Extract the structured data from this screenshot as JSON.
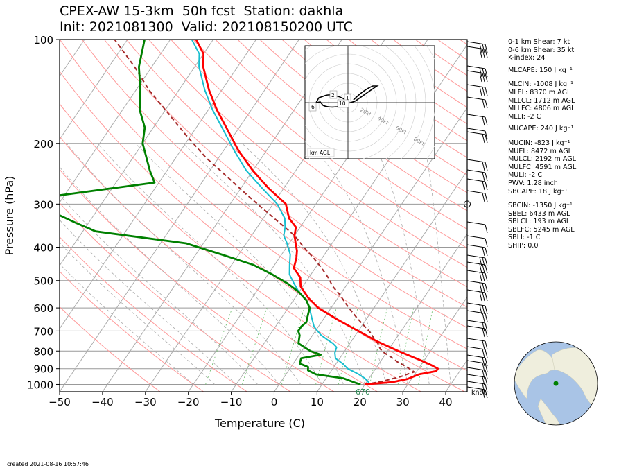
{
  "header": {
    "title_line1": "CPEX-AW 15-3km  50h fcst  Station: dakhla",
    "title_line2": "Init: 2021081300  Valid: 202108150200 UTC"
  },
  "stats": [
    "0-1 km Shear: 7 kt",
    "0-6 km Shear: 35 kt",
    "K-index: 24",
    "MLCAPE: 150 J kg⁻¹",
    "MLCIN: -1008 J kg⁻¹",
    "MLEL: 8370 m AGL",
    "MLLCL: 1712 m AGL",
    "MLLFC: 4806 m AGL",
    "MLLI: -2 C",
    "MUCAPE: 240 J kg⁻¹",
    "MUCIN: -823 J kg⁻¹",
    "MUEL: 8472 m AGL",
    "MULCL: 2192 m AGL",
    "MULFC: 4591 m AGL",
    "MULI: -2 C",
    "PWV: 1.28 inch",
    "SBCAPE: 18 J kg⁻¹",
    "SBCIN: -1350 J kg⁻¹",
    "SBEL: 6433 m AGL",
    "SBLCL: 193 m AGL",
    "SBLFC: 5245 m AGL",
    "SBLI: -1 C",
    "SHIP: 0.0"
  ],
  "footer": "created 2021-08-16 10:57:46",
  "chart_data": {
    "type": "line",
    "subtype": "skew-T log-P",
    "xlabel": "Temperature (C)",
    "ylabel": "Pressure (hPa)",
    "xlim": [
      -50,
      45
    ],
    "ylim": [
      1050,
      100
    ],
    "y_scale": "log",
    "x_ticks": [
      -50,
      -40,
      -30,
      -20,
      -10,
      0,
      10,
      20,
      30,
      40
    ],
    "x_tick_labels": [
      "−50",
      "−40",
      "−30",
      "−20",
      "−10",
      "0",
      "10",
      "20",
      "30",
      "40"
    ],
    "y_ticks": [
      100,
      200,
      300,
      400,
      500,
      600,
      700,
      800,
      900,
      1000
    ],
    "surface_label": "670",
    "knot_label": "knot",
    "colors": {
      "temperature": "#ff0000",
      "dewpoint": "#008000",
      "wetbulb": "#17becf",
      "parcel": "#a52a2a",
      "dry_adiabat": "#ff9999",
      "moist_adiabat": "#aaaaaa",
      "isotherm": "#aaaaaa",
      "mixing_ratio": "#66bb66",
      "hodograph": "#000000"
    },
    "series": [
      {
        "key": "temperature",
        "pressure": [
          1000,
          985,
          965,
          935,
          915,
          900,
          880,
          850,
          800,
          750,
          700,
          650,
          600,
          560,
          520,
          490,
          460,
          430,
          410,
          390,
          370,
          350,
          330,
          300,
          270,
          240,
          210,
          180,
          160,
          140,
          120,
          110,
          100
        ],
        "values": [
          20,
          26,
          29,
          31,
          34.5,
          34.5,
          32.5,
          29,
          22.5,
          16,
          10,
          3.5,
          -3,
          -7,
          -10.5,
          -12,
          -15,
          -16,
          -17,
          -18.5,
          -20,
          -21,
          -24,
          -27,
          -33.5,
          -40,
          -46.5,
          -53,
          -58,
          -63,
          -68,
          -70,
          -74
        ]
      },
      {
        "key": "dewpoint",
        "pressure": [
          1000,
          985,
          960,
          935,
          910,
          890,
          870,
          840,
          820,
          800,
          780,
          760,
          740,
          720,
          700,
          680,
          660,
          640,
          620,
          600,
          570,
          540,
          510,
          480,
          450,
          420,
          390,
          360,
          340,
          320,
          310,
          300,
          290,
          260,
          240,
          200,
          180,
          160,
          140,
          120,
          100
        ],
        "values": [
          19,
          17,
          14,
          7,
          4.5,
          4,
          1.5,
          1,
          5,
          2,
          0,
          -2,
          -2.5,
          -3,
          -4,
          -4,
          -3.5,
          -4,
          -4.5,
          -5,
          -7,
          -10,
          -14,
          -19,
          -25,
          -34,
          -44,
          -67,
          -73,
          -79,
          -81,
          -84,
          -87,
          -61,
          -64,
          -70,
          -72,
          -76,
          -79,
          -83,
          -86
        ]
      },
      {
        "key": "wetbulb",
        "pressure": [
          1000,
          985,
          960,
          935,
          900,
          870,
          840,
          810,
          780,
          760,
          740,
          720,
          700,
          680,
          650,
          620,
          600,
          570,
          540,
          510,
          480,
          450,
          420,
          390,
          370,
          350,
          330,
          300,
          270,
          240,
          210,
          180,
          160,
          140,
          120,
          110,
          100
        ],
        "values": [
          21,
          20.5,
          19,
          17,
          13.5,
          11.5,
          9,
          8,
          7.5,
          6,
          4,
          2,
          0.5,
          -1,
          -2.5,
          -4,
          -5,
          -7,
          -10,
          -12.5,
          -15,
          -16.5,
          -18,
          -20.5,
          -22.5,
          -23.5,
          -25,
          -29,
          -35,
          -41.5,
          -47.5,
          -54,
          -59,
          -64,
          -69,
          -71,
          -75
        ]
      },
      {
        "key": "parcel",
        "pressure": [
          1000,
          980,
          950,
          920,
          890,
          860,
          830,
          810,
          790,
          760,
          730,
          700,
          670,
          640,
          610,
          580,
          550,
          520,
          490,
          460,
          430,
          400,
          370,
          340,
          310,
          280,
          250,
          220,
          190,
          160,
          140,
          120,
          100
        ],
        "values": [
          20,
          23.5,
          27,
          29.5,
          27,
          24,
          21.5,
          19.5,
          18,
          16.5,
          14.5,
          12.5,
          10,
          7.5,
          5,
          2.5,
          0,
          -3,
          -5.5,
          -8.5,
          -12,
          -16,
          -20,
          -25.5,
          -31.5,
          -38,
          -45,
          -53,
          -61,
          -70,
          -77,
          -84,
          -93
        ]
      }
    ],
    "hodograph": {
      "label": "km AGL",
      "ring_labels": [
        "20kt",
        "40kt",
        "60kt",
        "80kt"
      ],
      "height_labels": [
        "1",
        "2",
        "6",
        "10"
      ]
    },
    "wind_barbs_side": "right",
    "inset_globe": "station location marker"
  }
}
